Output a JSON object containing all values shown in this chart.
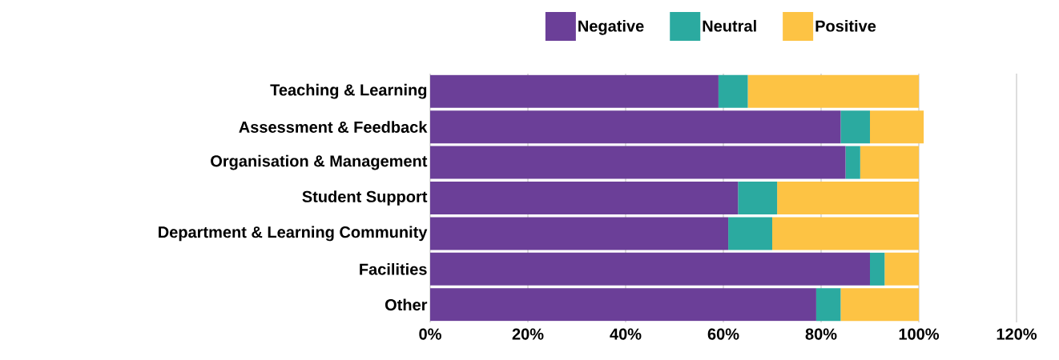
{
  "chart_data": {
    "type": "bar",
    "orientation": "horizontal",
    "stacked": true,
    "categories": [
      "Teaching & Learning",
      "Assessment & Feedback",
      "Organisation & Management",
      "Student Support",
      "Department & Learning Community",
      "Facilities",
      "Other"
    ],
    "series": [
      {
        "name": "Negative",
        "color": "#6b3f98",
        "values": [
          59,
          84,
          85,
          63,
          61,
          90,
          79
        ]
      },
      {
        "name": "Neutral",
        "color": "#2baaa0",
        "values": [
          6,
          6,
          3,
          8,
          9,
          3,
          5
        ]
      },
      {
        "name": "Positive",
        "color": "#fdc344",
        "values": [
          35,
          11,
          12,
          29,
          30,
          7,
          16
        ]
      }
    ],
    "xlim": [
      0,
      120
    ],
    "xticks": [
      {
        "value": 0,
        "label": "0%"
      },
      {
        "value": 20,
        "label": "20%"
      },
      {
        "value": 40,
        "label": "40%"
      },
      {
        "value": 60,
        "label": "60%"
      },
      {
        "value": 80,
        "label": "80%"
      },
      {
        "value": 100,
        "label": "100%"
      },
      {
        "value": 120,
        "label": "120%"
      }
    ],
    "grid": "x",
    "legend": "top"
  }
}
